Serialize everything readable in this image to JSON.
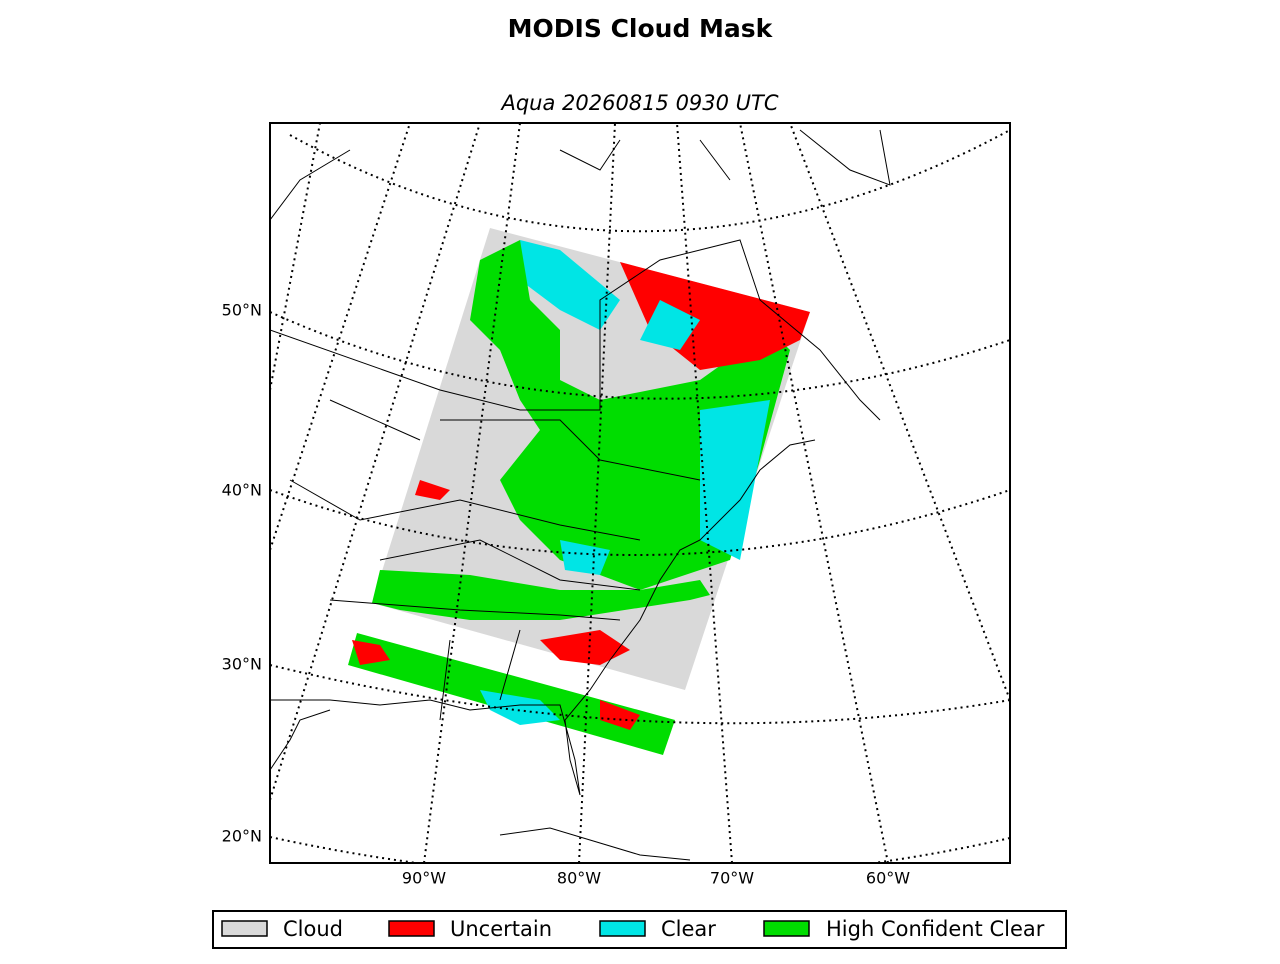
{
  "title": "MODIS Cloud Mask",
  "subtitle": "Aqua 20260815 0930 UTC",
  "lat_labels": [
    "50°N",
    "40°N",
    "30°N",
    "20°N"
  ],
  "lon_labels": [
    "90°W",
    "80°W",
    "70°W",
    "60°W"
  ],
  "legend": [
    {
      "label": "Cloud",
      "color": "#d9d9d9"
    },
    {
      "label": "Uncertain",
      "color": "#ff0000"
    },
    {
      "label": "Clear",
      "color": "#00e5e5"
    },
    {
      "label": "High Confident Clear",
      "color": "#00dd00"
    }
  ]
}
